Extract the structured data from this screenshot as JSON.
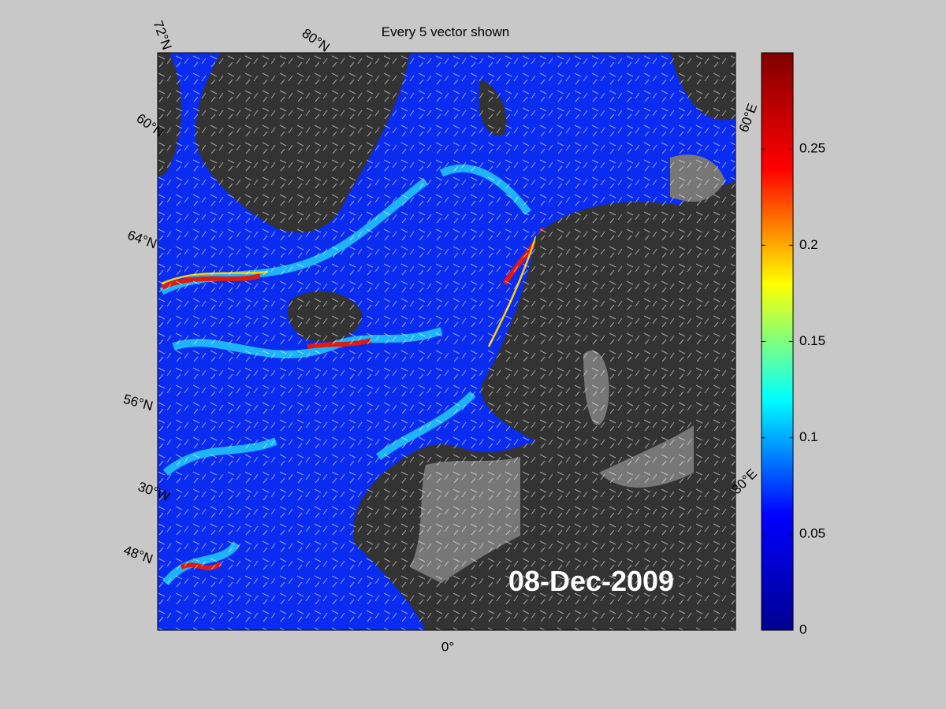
{
  "title": "Every 5 vector shown",
  "grid_labels": [
    "72°N",
    "80°N",
    "60°N",
    "64°N",
    "56°N",
    "30°W",
    "48°N",
    "0°",
    "60°E",
    "30°E"
  ],
  "date": "08-Dec-2009",
  "colorbar": {
    "lim": [
      0,
      0.3
    ],
    "ticks": [
      0,
      0.05,
      0.1,
      0.15,
      0.2,
      0.25
    ],
    "colors": [
      "#00008f",
      "#0000ff",
      "#00ffff",
      "#ffff00",
      "#ff0000",
      "#800000"
    ]
  }
}
